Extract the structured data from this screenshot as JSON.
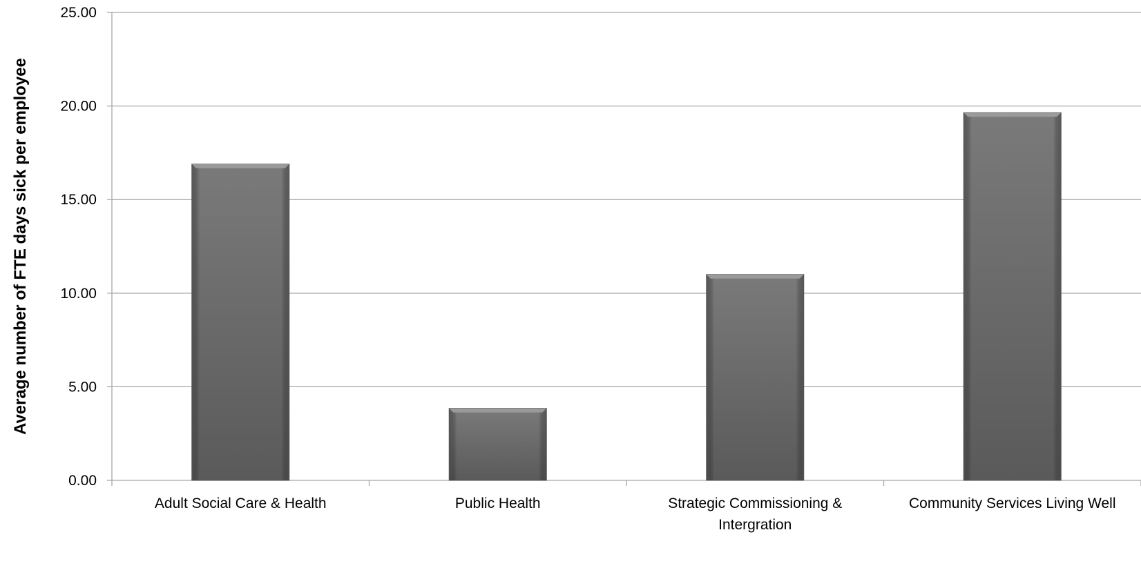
{
  "chart_data": {
    "type": "bar",
    "categories": [
      "Adult Social Care & Health",
      "Public Health",
      "Strategic Commissioning & Intergration",
      "Community Services Living Well"
    ],
    "values": [
      16.9,
      3.85,
      11.0,
      19.65
    ],
    "title": "",
    "xlabel": "",
    "ylabel": "Average number of FTE days sick per employee",
    "ylim": [
      0,
      25
    ],
    "yticks": [
      "0.00",
      "5.00",
      "10.00",
      "15.00",
      "20.00",
      "25.00"
    ],
    "grid": true,
    "legend": "none",
    "bar_color": "#6b6b6b",
    "grid_color": "#a6a6a6",
    "axis_color": "#a6a6a6"
  }
}
